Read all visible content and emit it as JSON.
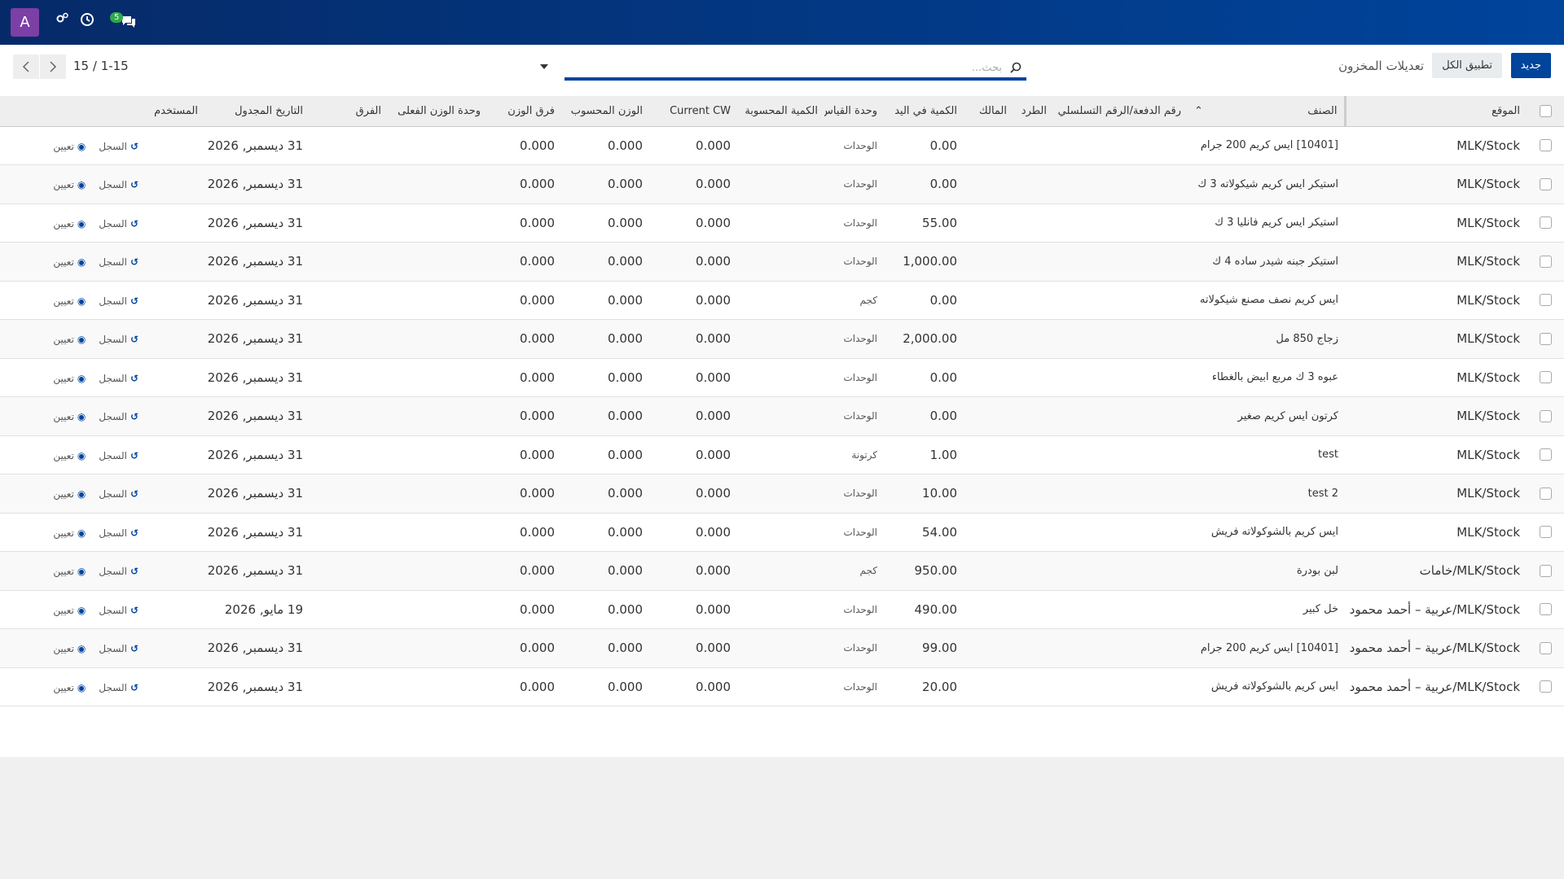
{
  "navbar": {
    "avatar": "A",
    "message_count": "5"
  },
  "control_panel": {
    "new_button": "جديد",
    "apply_all_button": "تطبيق الكل",
    "breadcrumb": "تعديلات المخزون",
    "search_placeholder": "بحث...",
    "pager": "1-15 / 15"
  },
  "table": {
    "columns": [
      "الموقع",
      "الصنف",
      "رقم الدفعة/الرقم التسلسلي",
      "الطرد",
      "المالك",
      "الكمية في اليد",
      "وحدة القياس",
      "الكمية المحسوبة",
      "Current CW",
      "الوزن المحسوب",
      "فرق الوزن",
      "وحدة الوزن الفعلى",
      "الفرق",
      "التاريخ المجدول",
      "المستخدم"
    ],
    "rows": [
      {
        "location": "MLK/Stock",
        "product": "[10401] ايس كريم 200 جرام",
        "quantity": "0.00",
        "uom": "الوحدات",
        "current_cw": "0.000",
        "computed_weight": "0.000",
        "weight_diff": "0.000",
        "scheduled_date": "31 ديسمبر, 2026"
      },
      {
        "location": "MLK/Stock",
        "product": "استيكر ايس كريم شيكولاته 3 ك",
        "quantity": "0.00",
        "uom": "الوحدات",
        "current_cw": "0.000",
        "computed_weight": "0.000",
        "weight_diff": "0.000",
        "scheduled_date": "31 ديسمبر, 2026"
      },
      {
        "location": "MLK/Stock",
        "product": "استيكر ايس كريم فانليا 3 ك",
        "quantity": "55.00",
        "uom": "الوحدات",
        "current_cw": "0.000",
        "computed_weight": "0.000",
        "weight_diff": "0.000",
        "scheduled_date": "31 ديسمبر, 2026"
      },
      {
        "location": "MLK/Stock",
        "product": "استيكر جبنه شيدر ساده 4 ك",
        "quantity": "1,000.00",
        "uom": "الوحدات",
        "current_cw": "0.000",
        "computed_weight": "0.000",
        "weight_diff": "0.000",
        "scheduled_date": "31 ديسمبر, 2026"
      },
      {
        "location": "MLK/Stock",
        "product": "ايس كريم نصف مصنع شيكولاته",
        "quantity": "0.00",
        "uom": "كجم",
        "current_cw": "0.000",
        "computed_weight": "0.000",
        "weight_diff": "0.000",
        "scheduled_date": "31 ديسمبر, 2026"
      },
      {
        "location": "MLK/Stock",
        "product": "زجاج 850 مل",
        "quantity": "2,000.00",
        "uom": "الوحدات",
        "current_cw": "0.000",
        "computed_weight": "0.000",
        "weight_diff": "0.000",
        "scheduled_date": "31 ديسمبر, 2026"
      },
      {
        "location": "MLK/Stock",
        "product": "عبوه 3 ك مربع ابيض بالغطاء",
        "quantity": "0.00",
        "uom": "الوحدات",
        "current_cw": "0.000",
        "computed_weight": "0.000",
        "weight_diff": "0.000",
        "scheduled_date": "31 ديسمبر, 2026"
      },
      {
        "location": "MLK/Stock",
        "product": "كرتون ايس كريم صغير",
        "quantity": "0.00",
        "uom": "الوحدات",
        "current_cw": "0.000",
        "computed_weight": "0.000",
        "weight_diff": "0.000",
        "scheduled_date": "31 ديسمبر, 2026"
      },
      {
        "location": "MLK/Stock",
        "product": "test",
        "quantity": "1.00",
        "uom": "كرتونة",
        "current_cw": "0.000",
        "computed_weight": "0.000",
        "weight_diff": "0.000",
        "scheduled_date": "31 ديسمبر, 2026"
      },
      {
        "location": "MLK/Stock",
        "product": "test 2",
        "quantity": "10.00",
        "uom": "الوحدات",
        "current_cw": "0.000",
        "computed_weight": "0.000",
        "weight_diff": "0.000",
        "scheduled_date": "31 ديسمبر, 2026"
      },
      {
        "location": "MLK/Stock",
        "product": "ايس كريم بالشوكولاته فريش",
        "quantity": "54.00",
        "uom": "الوحدات",
        "current_cw": "0.000",
        "computed_weight": "0.000",
        "weight_diff": "0.000",
        "scheduled_date": "31 ديسمبر, 2026"
      },
      {
        "location": "MLK/Stock/خامات",
        "product": "لبن بودرة",
        "quantity": "950.00",
        "uom": "كجم",
        "current_cw": "0.000",
        "computed_weight": "0.000",
        "weight_diff": "0.000",
        "scheduled_date": "31 ديسمبر, 2026"
      },
      {
        "location": "MLK/Stock/عربية – أحمد محمود",
        "product": "خل كبير",
        "quantity": "490.00",
        "uom": "الوحدات",
        "current_cw": "0.000",
        "computed_weight": "0.000",
        "weight_diff": "0.000",
        "scheduled_date": "19 مايو, 2026"
      },
      {
        "location": "MLK/Stock/عربية – أحمد محمود",
        "product": "[10401] ايس كريم 200 جرام",
        "quantity": "99.00",
        "uom": "الوحدات",
        "current_cw": "0.000",
        "computed_weight": "0.000",
        "weight_diff": "0.000",
        "scheduled_date": "31 ديسمبر, 2026"
      },
      {
        "location": "MLK/Stock/عربية – أحمد محمود",
        "product": "ايس كريم بالشوكولاته فريش",
        "quantity": "20.00",
        "uom": "الوحدات",
        "current_cw": "0.000",
        "computed_weight": "0.000",
        "weight_diff": "0.000",
        "scheduled_date": "31 ديسمبر, 2026"
      }
    ]
  },
  "row_actions": {
    "history": "السجل",
    "assign": "تعيين"
  }
}
